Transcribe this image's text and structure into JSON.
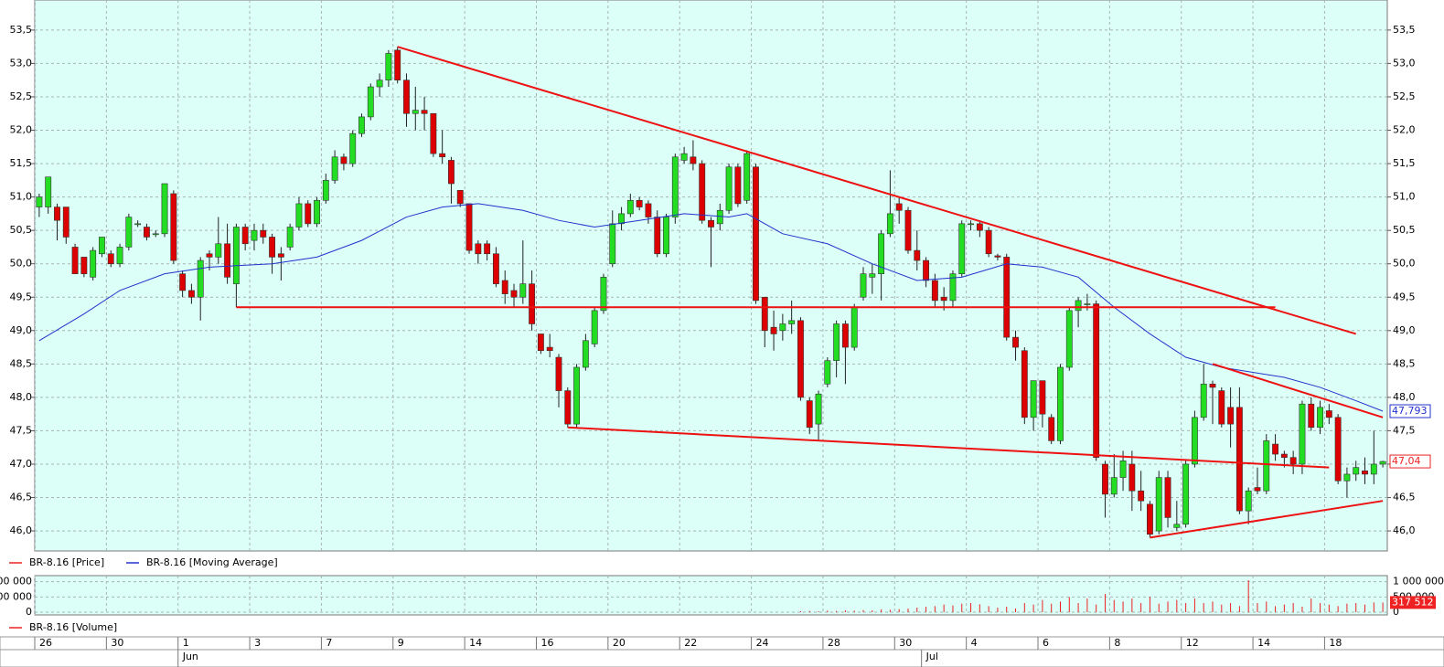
{
  "chart_data": {
    "type": "candlestick",
    "ohlc": [
      [
        50.85,
        51.05,
        50.7,
        51.0
      ],
      [
        50.85,
        51.3,
        50.75,
        51.3
      ],
      [
        50.85,
        50.9,
        50.35,
        50.65
      ],
      [
        50.85,
        50.85,
        50.3,
        50.4
      ],
      [
        50.25,
        50.3,
        49.85,
        49.85
      ],
      [
        50.1,
        50.1,
        49.8,
        49.85
      ],
      [
        49.8,
        50.25,
        49.75,
        50.2
      ],
      [
        50.15,
        50.4,
        50.1,
        50.4
      ],
      [
        50.15,
        50.2,
        49.95,
        50.0
      ],
      [
        50.0,
        50.3,
        49.95,
        50.25
      ],
      [
        50.25,
        50.75,
        50.2,
        50.7
      ],
      [
        50.6,
        50.65,
        50.55,
        50.6
      ],
      [
        50.55,
        50.6,
        50.35,
        50.4
      ],
      [
        50.45,
        50.5,
        50.4,
        50.45
      ],
      [
        50.45,
        51.2,
        50.4,
        51.2
      ],
      [
        51.05,
        51.1,
        50.0,
        50.05
      ],
      [
        49.85,
        49.9,
        49.5,
        49.6
      ],
      [
        49.6,
        49.7,
        49.4,
        49.5
      ],
      [
        49.5,
        50.1,
        49.15,
        50.05
      ],
      [
        50.15,
        50.2,
        49.9,
        50.1
      ],
      [
        50.1,
        50.7,
        50.0,
        50.3
      ],
      [
        50.3,
        50.6,
        49.7,
        49.8
      ],
      [
        49.7,
        50.6,
        49.35,
        50.55
      ],
      [
        50.55,
        50.6,
        50.2,
        50.3
      ],
      [
        50.35,
        50.6,
        50.2,
        50.5
      ],
      [
        50.5,
        50.6,
        50.3,
        50.4
      ],
      [
        50.4,
        50.45,
        49.85,
        50.1
      ],
      [
        50.15,
        50.25,
        49.75,
        50.1
      ],
      [
        50.25,
        50.6,
        50.2,
        50.55
      ],
      [
        50.55,
        51.0,
        50.5,
        50.9
      ],
      [
        50.9,
        50.95,
        50.55,
        50.6
      ],
      [
        50.6,
        51.0,
        50.55,
        50.95
      ],
      [
        50.95,
        51.35,
        50.9,
        51.25
      ],
      [
        51.25,
        51.7,
        51.2,
        51.6
      ],
      [
        51.6,
        51.65,
        51.4,
        51.5
      ],
      [
        51.5,
        52.0,
        51.45,
        51.95
      ],
      [
        51.95,
        52.25,
        51.9,
        52.2
      ],
      [
        52.2,
        52.7,
        52.15,
        52.65
      ],
      [
        52.65,
        52.85,
        52.5,
        52.75
      ],
      [
        52.75,
        53.2,
        52.65,
        53.15
      ],
      [
        53.2,
        53.25,
        52.7,
        52.75
      ],
      [
        52.75,
        52.85,
        52.05,
        52.25
      ],
      [
        52.25,
        52.65,
        52.0,
        52.3
      ],
      [
        52.3,
        52.5,
        52.0,
        52.25
      ],
      [
        52.25,
        52.25,
        51.6,
        51.65
      ],
      [
        51.65,
        52.0,
        51.5,
        51.6
      ],
      [
        51.55,
        51.6,
        50.9,
        51.2
      ],
      [
        51.1,
        51.1,
        50.85,
        50.9
      ],
      [
        50.9,
        50.9,
        50.15,
        50.2
      ],
      [
        50.3,
        50.35,
        50.0,
        50.15
      ],
      [
        50.3,
        50.35,
        50.05,
        50.15
      ],
      [
        50.15,
        50.25,
        49.65,
        49.7
      ],
      [
        49.75,
        49.9,
        49.4,
        49.55
      ],
      [
        49.6,
        49.7,
        49.35,
        49.5
      ],
      [
        49.5,
        50.35,
        49.4,
        49.7
      ],
      [
        49.7,
        49.9,
        49.0,
        49.1
      ],
      [
        48.95,
        48.95,
        48.65,
        48.7
      ],
      [
        48.75,
        48.95,
        48.6,
        48.7
      ],
      [
        48.6,
        48.65,
        47.85,
        48.1
      ],
      [
        48.1,
        48.15,
        47.55,
        47.6
      ],
      [
        47.6,
        48.5,
        47.55,
        48.45
      ],
      [
        48.45,
        48.95,
        48.4,
        48.85
      ],
      [
        48.8,
        49.35,
        48.75,
        49.3
      ],
      [
        49.3,
        49.85,
        49.25,
        49.8
      ],
      [
        50.0,
        50.8,
        49.95,
        50.6
      ],
      [
        50.6,
        50.85,
        50.5,
        50.75
      ],
      [
        50.75,
        51.05,
        50.7,
        50.95
      ],
      [
        50.95,
        51.0,
        50.8,
        50.85
      ],
      [
        50.9,
        50.95,
        50.6,
        50.7
      ],
      [
        50.7,
        50.8,
        50.1,
        50.15
      ],
      [
        50.15,
        50.75,
        50.1,
        50.7
      ],
      [
        50.7,
        51.65,
        50.6,
        51.6
      ],
      [
        51.55,
        51.75,
        51.5,
        51.65
      ],
      [
        51.6,
        51.85,
        51.4,
        51.5
      ],
      [
        51.5,
        51.55,
        50.6,
        50.65
      ],
      [
        50.65,
        50.7,
        49.95,
        50.55
      ],
      [
        50.6,
        50.9,
        50.5,
        50.8
      ],
      [
        50.8,
        51.5,
        50.75,
        51.45
      ],
      [
        51.45,
        51.5,
        50.85,
        50.9
      ],
      [
        50.95,
        51.7,
        50.9,
        51.65
      ],
      [
        51.45,
        51.5,
        49.4,
        49.45
      ],
      [
        49.5,
        49.5,
        48.75,
        49.0
      ],
      [
        49.05,
        49.3,
        48.7,
        48.95
      ],
      [
        49.0,
        49.25,
        48.85,
        49.1
      ],
      [
        49.1,
        49.45,
        48.95,
        49.15
      ],
      [
        49.15,
        49.2,
        47.95,
        48.0
      ],
      [
        47.95,
        48.0,
        47.45,
        47.55
      ],
      [
        47.6,
        48.1,
        47.35,
        48.05
      ],
      [
        48.2,
        48.6,
        48.15,
        48.55
      ],
      [
        48.55,
        49.15,
        48.3,
        49.1
      ],
      [
        49.1,
        49.15,
        48.2,
        48.75
      ],
      [
        48.75,
        49.4,
        48.7,
        49.35
      ],
      [
        49.5,
        49.95,
        49.45,
        49.85
      ],
      [
        49.8,
        50.0,
        49.55,
        49.85
      ],
      [
        49.85,
        50.5,
        49.45,
        50.45
      ],
      [
        50.45,
        51.4,
        50.4,
        50.75
      ],
      [
        50.9,
        51.0,
        50.6,
        50.8
      ],
      [
        50.8,
        50.85,
        50.15,
        50.2
      ],
      [
        50.2,
        50.5,
        49.9,
        50.05
      ],
      [
        50.05,
        50.1,
        49.65,
        49.75
      ],
      [
        49.75,
        49.85,
        49.35,
        49.45
      ],
      [
        49.5,
        49.65,
        49.3,
        49.45
      ],
      [
        49.45,
        49.9,
        49.35,
        49.85
      ],
      [
        49.85,
        50.65,
        49.8,
        50.6
      ],
      [
        50.6,
        50.65,
        50.5,
        50.6
      ],
      [
        50.6,
        50.65,
        50.4,
        50.5
      ],
      [
        50.5,
        50.55,
        50.1,
        50.15
      ],
      [
        50.12,
        50.15,
        50.05,
        50.1
      ],
      [
        50.1,
        50.15,
        48.85,
        48.9
      ],
      [
        48.9,
        49.0,
        48.55,
        48.75
      ],
      [
        48.7,
        48.75,
        47.6,
        47.7
      ],
      [
        47.7,
        48.25,
        47.5,
        48.25
      ],
      [
        48.25,
        48.25,
        47.55,
        47.75
      ],
      [
        47.7,
        47.75,
        47.3,
        47.35
      ],
      [
        47.35,
        48.5,
        47.3,
        48.45
      ],
      [
        48.45,
        49.35,
        48.4,
        49.3
      ],
      [
        49.3,
        49.5,
        49.05,
        49.45
      ],
      [
        49.4,
        49.55,
        49.3,
        49.4
      ],
      [
        49.4,
        49.45,
        47.05,
        47.1
      ],
      [
        47.0,
        47.05,
        46.2,
        46.55
      ],
      [
        46.55,
        47.15,
        46.5,
        46.8
      ],
      [
        46.8,
        47.2,
        46.6,
        47.05
      ],
      [
        47.0,
        47.2,
        46.3,
        46.6
      ],
      [
        46.6,
        46.9,
        46.3,
        46.45
      ],
      [
        46.4,
        46.45,
        45.9,
        45.95
      ],
      [
        46.0,
        46.9,
        45.95,
        46.8
      ],
      [
        46.8,
        46.9,
        46.05,
        46.2
      ],
      [
        46.05,
        46.45,
        46.0,
        46.1
      ],
      [
        46.1,
        47.05,
        46.05,
        47.0
      ],
      [
        47.0,
        47.8,
        46.95,
        47.7
      ],
      [
        47.7,
        48.5,
        47.65,
        48.2
      ],
      [
        48.2,
        48.25,
        47.6,
        48.15
      ],
      [
        48.1,
        48.15,
        47.55,
        47.6
      ],
      [
        47.85,
        48.15,
        47.25,
        47.6
      ],
      [
        47.85,
        48.15,
        46.25,
        46.3
      ],
      [
        46.3,
        46.65,
        46.1,
        46.6
      ],
      [
        46.65,
        46.95,
        46.55,
        46.6
      ],
      [
        46.6,
        47.45,
        46.55,
        47.35
      ],
      [
        47.3,
        47.45,
        47.05,
        47.15
      ],
      [
        47.15,
        47.2,
        46.95,
        47.1
      ],
      [
        47.1,
        47.2,
        46.85,
        47.0
      ],
      [
        47.0,
        47.95,
        46.85,
        47.9
      ],
      [
        47.9,
        48.0,
        47.5,
        47.55
      ],
      [
        47.55,
        47.95,
        47.45,
        47.85
      ],
      [
        47.8,
        47.9,
        47.6,
        47.7
      ],
      [
        47.7,
        47.75,
        46.7,
        46.75
      ],
      [
        46.75,
        46.95,
        46.5,
        46.85
      ],
      [
        46.85,
        47.05,
        46.75,
        46.95
      ],
      [
        46.9,
        47.1,
        46.7,
        46.85
      ],
      [
        46.85,
        47.5,
        46.7,
        47.0
      ],
      [
        47.0,
        47.05,
        46.95,
        47.04
      ]
    ],
    "up_color": "#22dd22",
    "down_color": "#dd0000",
    "grid": true,
    "xlim": [
      -0.5,
      150.5
    ],
    "xticks": [
      {
        "value": -0.5,
        "label": "26"
      },
      {
        "value": 7.5,
        "label": "30"
      },
      {
        "value": 15.5,
        "label": "1"
      },
      {
        "value": 23.5,
        "label": "3"
      },
      {
        "value": 31.5,
        "label": "7"
      },
      {
        "value": 39.5,
        "label": "9"
      },
      {
        "value": 47.5,
        "label": "14"
      },
      {
        "value": 55.5,
        "label": "16"
      },
      {
        "value": 63.5,
        "label": "20"
      },
      {
        "value": 71.5,
        "label": "22"
      },
      {
        "value": 79.5,
        "label": "24"
      },
      {
        "value": 87.5,
        "label": "28"
      },
      {
        "value": 95.5,
        "label": "30"
      },
      {
        "value": 103.5,
        "label": "4"
      },
      {
        "value": 111.5,
        "label": "6"
      },
      {
        "value": 119.5,
        "label": "8"
      },
      {
        "value": 127.5,
        "label": "12"
      },
      {
        "value": 135.5,
        "label": "14"
      },
      {
        "value": 143.5,
        "label": "18"
      }
    ],
    "months": [
      {
        "value": 15.5,
        "label": "Jun"
      },
      {
        "value": 98.5,
        "label": "Jul"
      }
    ],
    "ylim": [
      45.7,
      53.95
    ],
    "yticks": [
      {
        "value": 46,
        "label": "46,0"
      },
      {
        "value": 46.5,
        "label": "46,5"
      },
      {
        "value": 47,
        "label": "47,0"
      },
      {
        "value": 47.5,
        "label": "47,5"
      },
      {
        "value": 48,
        "label": "48,0"
      },
      {
        "value": 48.5,
        "label": "48,5"
      },
      {
        "value": 49,
        "label": "49,0"
      },
      {
        "value": 49.5,
        "label": "49,5"
      },
      {
        "value": 50,
        "label": "50,0"
      },
      {
        "value": 50.5,
        "label": "50,5"
      },
      {
        "value": 51,
        "label": "51,0"
      },
      {
        "value": 51.5,
        "label": "51,5"
      },
      {
        "value": 52,
        "label": "52,0"
      },
      {
        "value": 52.5,
        "label": "52,5"
      },
      {
        "value": 53,
        "label": "53,0"
      },
      {
        "value": 53.5,
        "label": "53,5"
      }
    ],
    "series": [
      {
        "name": "BR-8.16 [Price]",
        "color": "#ee2222"
      },
      {
        "name": "BR-8.16 [Moving Average]",
        "color": "#2233cc",
        "x": [
          0,
          5,
          9,
          14,
          19,
          26,
          31,
          36,
          41,
          45,
          49,
          54,
          58,
          62,
          67,
          72,
          77,
          79,
          83,
          88,
          93,
          98,
          103,
          108,
          112,
          116,
          120,
          124,
          128,
          132,
          139,
          143,
          147,
          150
        ],
        "values": [
          48.85,
          49.25,
          49.6,
          49.85,
          49.95,
          50.0,
          50.1,
          50.35,
          50.7,
          50.85,
          50.9,
          50.8,
          50.65,
          50.55,
          50.65,
          50.75,
          50.7,
          50.75,
          50.45,
          50.3,
          50.0,
          49.75,
          49.8,
          50.0,
          49.95,
          49.8,
          49.35,
          48.95,
          48.6,
          48.45,
          48.3,
          48.15,
          47.95,
          47.793
        ]
      }
    ],
    "last_price": {
      "value": 47.04,
      "label": "47,04"
    },
    "last_average": {
      "value": 47.793,
      "label": "47,793"
    },
    "trendline_color": "#ee1111",
    "trendlines": [
      {
        "x": [
          40,
          147
        ],
        "values": [
          53.25,
          48.95
        ]
      },
      {
        "x": [
          22,
          138
        ],
        "values": [
          49.35,
          49.35
        ]
      },
      {
        "x": [
          59,
          144
        ],
        "values": [
          47.55,
          46.95
        ]
      },
      {
        "x": [
          124,
          150
        ],
        "values": [
          45.9,
          46.45
        ]
      },
      {
        "x": [
          131,
          150
        ],
        "values": [
          48.5,
          47.7
        ]
      }
    ],
    "volume": {
      "name": "BR-8.16 [Volume]",
      "color": "#ee2222",
      "x": [
        85,
        86,
        87,
        88,
        89,
        90,
        91,
        92,
        93,
        94,
        95,
        96,
        97,
        98,
        99,
        100,
        101,
        102,
        103,
        104,
        105,
        106,
        107,
        108,
        109,
        110,
        111,
        112,
        113,
        114,
        115,
        116,
        117,
        118,
        119,
        120,
        121,
        122,
        123,
        124,
        125,
        126,
        127,
        128,
        129,
        130,
        131,
        132,
        133,
        134,
        135,
        136,
        137,
        138,
        139,
        140,
        141,
        142,
        143,
        144,
        145,
        146,
        147,
        148,
        149,
        150
      ],
      "values": [
        30000,
        40000,
        30000,
        50000,
        40000,
        60000,
        50000,
        70000,
        60000,
        90000,
        80000,
        100000,
        120000,
        150000,
        180000,
        200000,
        250000,
        220000,
        280000,
        300000,
        260000,
        200000,
        150000,
        180000,
        120000,
        300000,
        250000,
        400000,
        280000,
        350000,
        500000,
        300000,
        450000,
        250000,
        600000,
        400000,
        350000,
        450000,
        300000,
        500000,
        280000,
        350000,
        400000,
        300000,
        450000,
        300000,
        350000,
        250000,
        300000,
        200000,
        1050000,
        300000,
        350000,
        200000,
        250000,
        300000,
        180000,
        450000,
        300000,
        250000,
        200000,
        280000,
        300000,
        250000,
        320000,
        317512
      ],
      "last": {
        "value": 317512,
        "label": "317 512"
      },
      "ylim": [
        0,
        1200000
      ],
      "yticks": [
        0,
        {
          "value": 500000,
          "label": "500 000"
        },
        {
          "value": 1000000,
          "label": "1 000 000"
        }
      ]
    }
  }
}
